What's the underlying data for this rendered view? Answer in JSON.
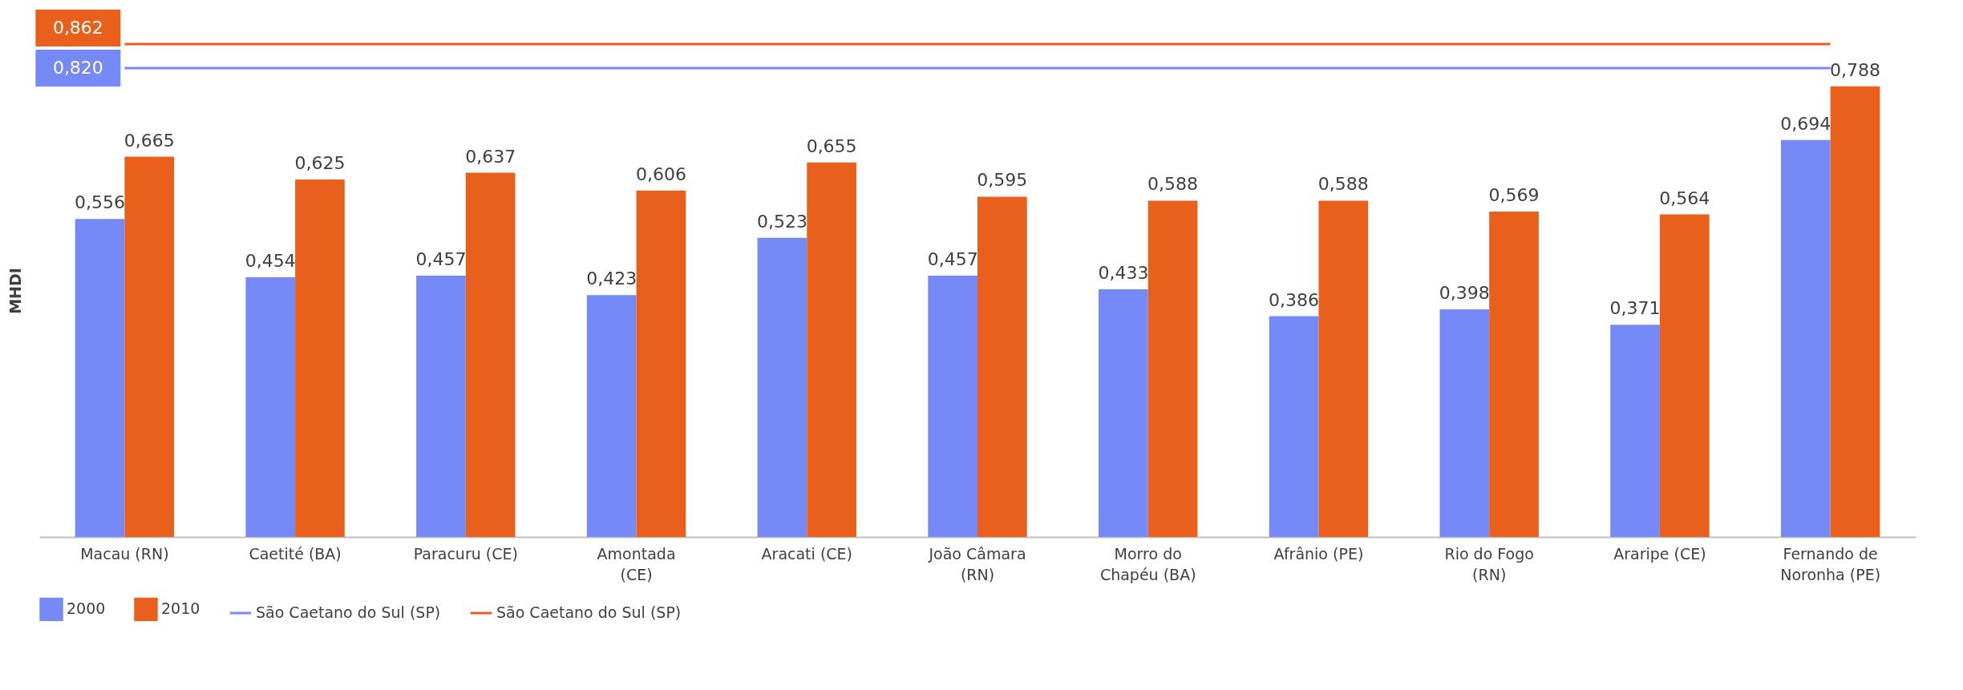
{
  "chart_data": {
    "type": "bar",
    "ylabel": "MHDI",
    "categories": [
      "Macau (RN)",
      "Caetité (BA)",
      "Paracuru (CE)",
      "Amontada\n(CE)",
      "Aracati (CE)",
      "João Câmara\n(RN)",
      "Morro do\nChapéu (BA)",
      "Afrânio (PE)",
      "Rio do Fogo\n(RN)",
      "Araripe (CE)",
      "Fernando de\nNoronha (PE)"
    ],
    "series": [
      {
        "name": "2000",
        "color": "#7589f7",
        "values": [
          0.556,
          0.454,
          0.457,
          0.423,
          0.523,
          0.457,
          0.433,
          0.386,
          0.398,
          0.371,
          0.694
        ],
        "value_labels": [
          "0,556",
          "0,454",
          "0,457",
          "0,423",
          "0,523",
          "0,457",
          "0,433",
          "0,386",
          "0,398",
          "0,371",
          "0,694"
        ]
      },
      {
        "name": "2010",
        "color": "#e8601c",
        "values": [
          0.665,
          0.625,
          0.637,
          0.606,
          0.655,
          0.595,
          0.588,
          0.588,
          0.569,
          0.564,
          0.788
        ],
        "value_labels": [
          "0,665",
          "0,625",
          "0,637",
          "0,606",
          "0,655",
          "0,595",
          "0,588",
          "0,588",
          "0,569",
          "0,564",
          "0,788"
        ]
      },
      {
        "name": "São Caetano do Sul (SP)",
        "type": "line",
        "color": "#7589f7",
        "values": [
          0.82,
          0.82,
          0.82,
          0.82,
          0.82,
          0.82,
          0.82,
          0.82,
          0.82,
          0.82,
          0.82
        ],
        "value_labels": [
          "0,820",
          null,
          null,
          null,
          null,
          null,
          null,
          null,
          null,
          null,
          null
        ]
      },
      {
        "name": "São Caetano do Sul (SP)",
        "type": "line",
        "color": "#e8601c",
        "values": [
          0.862,
          0.862,
          0.862,
          0.862,
          0.862,
          0.862,
          0.862,
          0.862,
          0.862,
          0.862,
          0.862
        ],
        "value_labels": [
          "0,862",
          null,
          null,
          null,
          null,
          null,
          null,
          null,
          null,
          null,
          null
        ]
      }
    ],
    "legend": "bottom",
    "tick_labels": "x",
    "grid": false
  }
}
